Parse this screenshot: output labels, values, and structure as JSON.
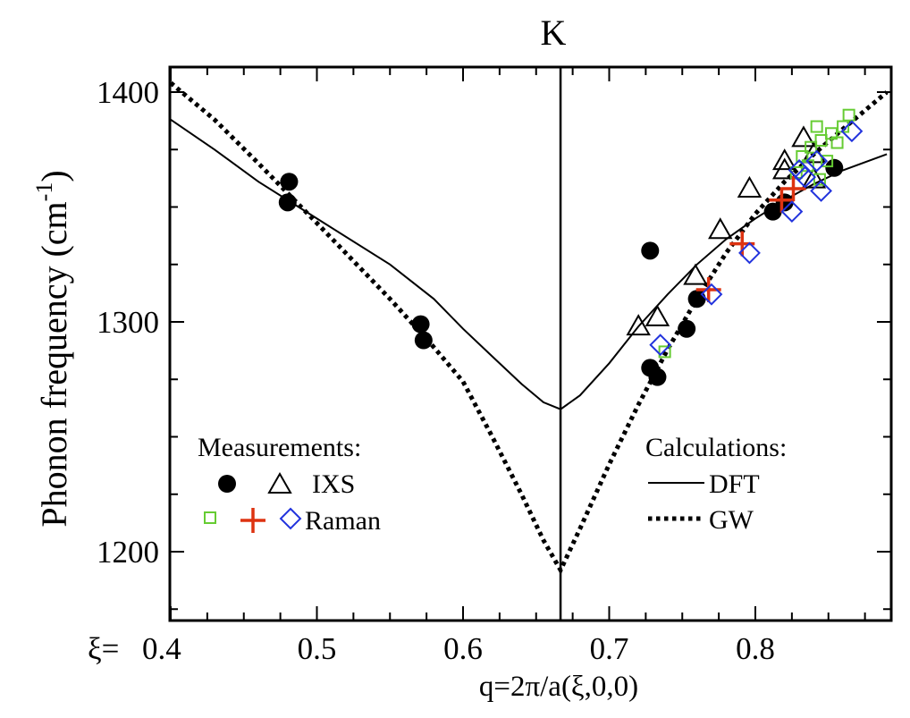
{
  "chart_data": {
    "type": "scatter",
    "title": "K",
    "xlabel": "q=2π/a(ξ,0,0)",
    "xlabel_prefix": "ξ=",
    "ylabel": "Phonon frequency (cm",
    "ylabel_sup": "-1",
    "ylabel_close": ")",
    "xlim": [
      0.4,
      0.89
    ],
    "ylim": [
      1170,
      1405
    ],
    "xticks": [
      0.4,
      0.5,
      0.6,
      0.7,
      0.8
    ],
    "xtick_labels": [
      "0.4",
      "0.5",
      "0.6",
      "0.7",
      "0.8"
    ],
    "yticks": [
      1200,
      1300,
      1400
    ],
    "ytick_labels": [
      "1200",
      "1300",
      "1400"
    ],
    "vline_x": 0.6667,
    "legend": {
      "measurements_title": "Measurements:",
      "ixs_label": "IXS",
      "raman_label": "Raman",
      "calculations_title": "Calculations:",
      "dft_label": "DFT",
      "gw_label": "GW"
    },
    "curves": [
      {
        "name": "DFT",
        "style": "solid",
        "points": [
          [
            0.4,
            1388
          ],
          [
            0.43,
            1375
          ],
          [
            0.46,
            1361
          ],
          [
            0.5,
            1345
          ],
          [
            0.55,
            1325
          ],
          [
            0.58,
            1310
          ],
          [
            0.6,
            1297
          ],
          [
            0.62,
            1285
          ],
          [
            0.64,
            1273
          ],
          [
            0.655,
            1265
          ],
          [
            0.6667,
            1262
          ],
          [
            0.68,
            1268
          ],
          [
            0.7,
            1282
          ],
          [
            0.72,
            1298
          ],
          [
            0.74,
            1312
          ],
          [
            0.76,
            1325
          ],
          [
            0.78,
            1336
          ],
          [
            0.8,
            1345
          ],
          [
            0.82,
            1353
          ],
          [
            0.84,
            1360
          ],
          [
            0.86,
            1366
          ],
          [
            0.89,
            1373
          ]
        ]
      },
      {
        "name": "GW",
        "style": "dotted",
        "points": [
          [
            0.4,
            1404
          ],
          [
            0.43,
            1388
          ],
          [
            0.46,
            1369
          ],
          [
            0.5,
            1343
          ],
          [
            0.55,
            1310
          ],
          [
            0.58,
            1289
          ],
          [
            0.6,
            1274
          ],
          [
            0.62,
            1250
          ],
          [
            0.64,
            1225
          ],
          [
            0.655,
            1205
          ],
          [
            0.6667,
            1192
          ],
          [
            0.68,
            1210
          ],
          [
            0.7,
            1238
          ],
          [
            0.72,
            1264
          ],
          [
            0.74,
            1288
          ],
          [
            0.76,
            1310
          ],
          [
            0.78,
            1330
          ],
          [
            0.8,
            1347
          ],
          [
            0.82,
            1361
          ],
          [
            0.84,
            1373
          ],
          [
            0.86,
            1384
          ],
          [
            0.89,
            1400
          ]
        ]
      }
    ],
    "series": [
      {
        "name": "IXS filled circles",
        "marker": "filled-circle",
        "color": "#000000",
        "points": [
          [
            0.481,
            1361
          ],
          [
            0.48,
            1352
          ],
          [
            0.571,
            1299
          ],
          [
            0.573,
            1292
          ],
          [
            0.728,
            1331
          ],
          [
            0.728,
            1280
          ],
          [
            0.733,
            1276
          ],
          [
            0.753,
            1297
          ],
          [
            0.76,
            1310
          ],
          [
            0.812,
            1348
          ],
          [
            0.82,
            1352
          ],
          [
            0.854,
            1367
          ]
        ]
      },
      {
        "name": "IXS open triangles",
        "marker": "open-triangle",
        "color": "#000000",
        "points": [
          [
            0.72,
            1298
          ],
          [
            0.733,
            1302
          ],
          [
            0.759,
            1320
          ],
          [
            0.776,
            1340
          ],
          [
            0.796,
            1358
          ],
          [
            0.82,
            1370
          ],
          [
            0.82,
            1366
          ],
          [
            0.833,
            1380
          ],
          [
            0.84,
            1373
          ],
          [
            0.84,
            1362
          ]
        ]
      },
      {
        "name": "Raman green squares",
        "marker": "open-square",
        "color": "#66cc33",
        "points": [
          [
            0.738,
            1287
          ],
          [
            0.832,
            1372
          ],
          [
            0.838,
            1376
          ],
          [
            0.842,
            1385
          ],
          [
            0.845,
            1379
          ],
          [
            0.849,
            1370
          ],
          [
            0.852,
            1382
          ],
          [
            0.856,
            1378
          ],
          [
            0.86,
            1385
          ],
          [
            0.864,
            1390
          ],
          [
            0.828,
            1365
          ],
          [
            0.836,
            1368
          ],
          [
            0.844,
            1362
          ]
        ]
      },
      {
        "name": "Raman red crosses",
        "marker": "plus",
        "color": "#dd3311",
        "points": [
          [
            0.768,
            1314
          ],
          [
            0.791,
            1334
          ],
          [
            0.818,
            1353
          ],
          [
            0.826,
            1358
          ]
        ]
      },
      {
        "name": "Raman blue diamonds",
        "marker": "open-diamond",
        "color": "#2233dd",
        "points": [
          [
            0.735,
            1290
          ],
          [
            0.77,
            1312
          ],
          [
            0.796,
            1330
          ],
          [
            0.825,
            1348
          ],
          [
            0.83,
            1366
          ],
          [
            0.834,
            1363
          ],
          [
            0.842,
            1370
          ],
          [
            0.845,
            1357
          ],
          [
            0.866,
            1383
          ]
        ]
      }
    ]
  }
}
